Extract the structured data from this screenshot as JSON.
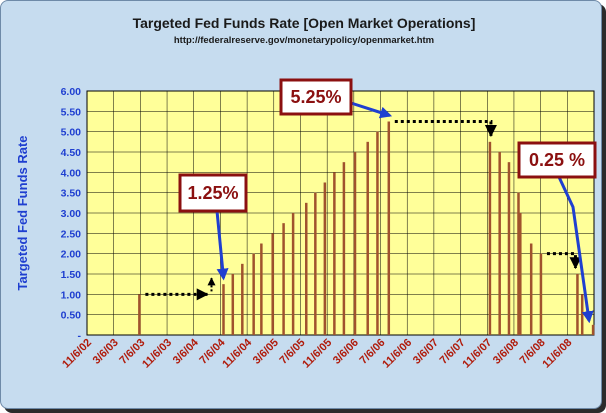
{
  "chart_data": {
    "type": "bar",
    "title": "Targeted Fed Funds Rate [Open Market Operations]",
    "subtitle": "http://federalreserve.gov/monetarypolicy/openmarket.htm",
    "ylabel": "Targeted Fed Funds Rate",
    "ylim": [
      0,
      6
    ],
    "yticks": [
      "-",
      "0.50",
      "1.00",
      "1.50",
      "2.00",
      "2.50",
      "3.00",
      "3.50",
      "4.00",
      "4.50",
      "5.00",
      "5.50",
      "6.00"
    ],
    "xticks": [
      "11/6/02",
      "3/6/03",
      "7/6/03",
      "11/6/03",
      "3/6/04",
      "7/6/04",
      "11/6/04",
      "3/6/05",
      "7/6/05",
      "11/6/05",
      "3/6/06",
      "7/6/06",
      "11/6/06",
      "3/6/07",
      "7/6/07",
      "11/6/07",
      "3/6/08",
      "7/6/08",
      "11/6/08"
    ],
    "x_range": [
      "2002-11-06",
      "2008-12-20"
    ],
    "grid": true,
    "colors": {
      "plot_bg": "#ffff99",
      "bar": "#a0522d",
      "frame_bg": "#c6dcef",
      "annotation_arrow": "#1f3fd0",
      "annotation_box": "#8b1010"
    },
    "bars": [
      {
        "date": "2003-06-25",
        "value": 1.0
      },
      {
        "date": "2004-06-30",
        "value": 1.25
      },
      {
        "date": "2004-08-10",
        "value": 1.5
      },
      {
        "date": "2004-09-21",
        "value": 1.75
      },
      {
        "date": "2004-11-10",
        "value": 2.0
      },
      {
        "date": "2004-12-14",
        "value": 2.25
      },
      {
        "date": "2005-02-02",
        "value": 2.5
      },
      {
        "date": "2005-03-22",
        "value": 2.75
      },
      {
        "date": "2005-05-03",
        "value": 3.0
      },
      {
        "date": "2005-06-30",
        "value": 3.25
      },
      {
        "date": "2005-08-09",
        "value": 3.5
      },
      {
        "date": "2005-09-20",
        "value": 3.75
      },
      {
        "date": "2005-11-01",
        "value": 4.0
      },
      {
        "date": "2005-12-13",
        "value": 4.25
      },
      {
        "date": "2006-01-31",
        "value": 4.5
      },
      {
        "date": "2006-03-28",
        "value": 4.75
      },
      {
        "date": "2006-05-10",
        "value": 5.0
      },
      {
        "date": "2006-06-29",
        "value": 5.25
      },
      {
        "date": "2007-09-18",
        "value": 4.75
      },
      {
        "date": "2007-10-31",
        "value": 4.5
      },
      {
        "date": "2007-12-11",
        "value": 4.25
      },
      {
        "date": "2008-01-22",
        "value": 3.5
      },
      {
        "date": "2008-01-30",
        "value": 3.0
      },
      {
        "date": "2008-03-18",
        "value": 2.25
      },
      {
        "date": "2008-04-30",
        "value": 2.0
      },
      {
        "date": "2008-10-08",
        "value": 1.5
      },
      {
        "date": "2008-10-29",
        "value": 1.0
      },
      {
        "date": "2008-12-16",
        "value": 0.25
      }
    ],
    "annotations": [
      {
        "label": "1.25%",
        "points_to": "2004-06-30"
      },
      {
        "label": "5.25%",
        "points_to": "2006-06-29"
      },
      {
        "label": "0.25 %",
        "points_to": "2008-12-16"
      }
    ]
  }
}
